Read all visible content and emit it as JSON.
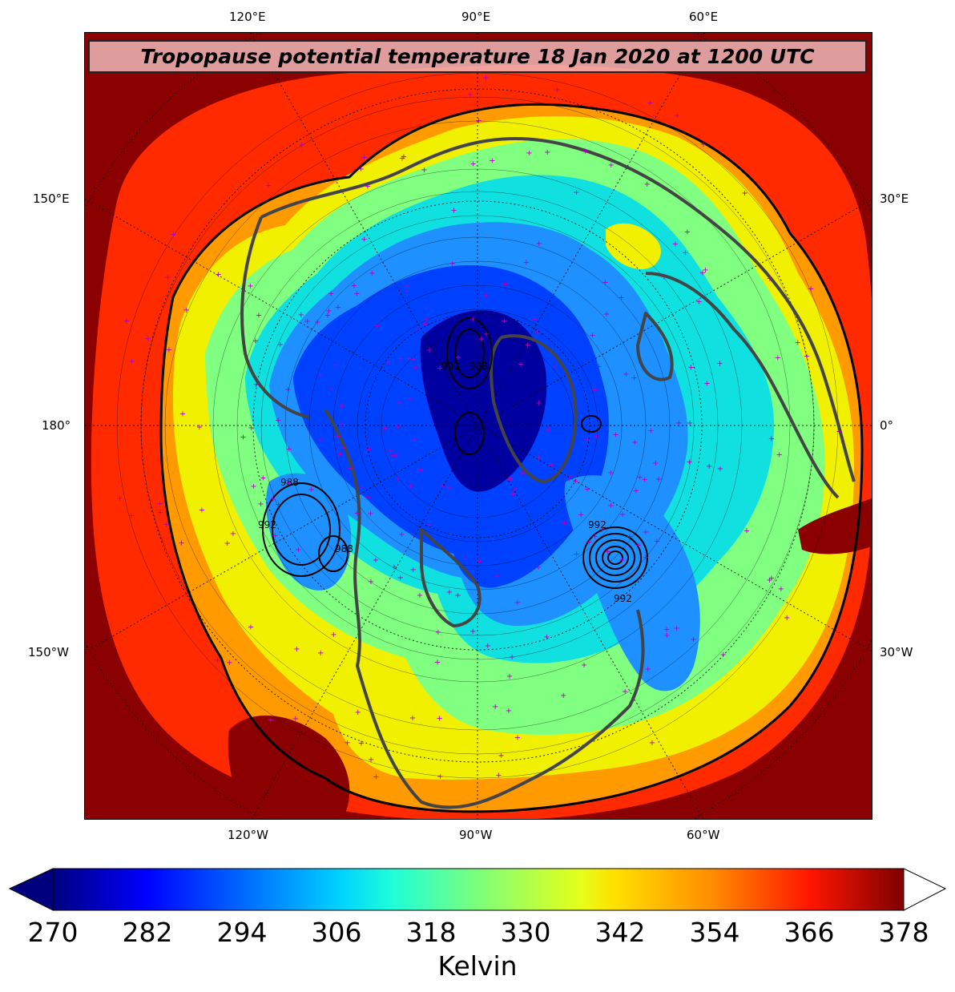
{
  "title": "Tropopause potential temperature 18 Jan 2020 at 1200 UTC",
  "longitude_labels": {
    "top": [
      "120°E",
      "90°E",
      "60°E"
    ],
    "bottom": [
      "120°W",
      "90°W",
      "60°W"
    ],
    "left": [
      "150°E",
      "180°",
      "150°W"
    ],
    "right": [
      "30°E",
      "0°",
      "30°W"
    ]
  },
  "pressure_contour_labels": [
    "992",
    "988",
    "988",
    "992",
    "988",
    "992",
    "992"
  ],
  "colorbar": {
    "ticks": [
      "270",
      "282",
      "294",
      "306",
      "318",
      "330",
      "342",
      "354",
      "366",
      "378"
    ],
    "label": "Kelvin",
    "colormap": "jet",
    "extend_min_color": "#00007f",
    "extend_max_color": "#ffffff"
  },
  "colors": {
    "outer_warm": "#8b0000",
    "warm": "#ff2a00",
    "orange": "#ff9a00",
    "yellow": "#f0f000",
    "green": "#80ff80",
    "cyan": "#10e0e0",
    "light_blue": "#1e90ff",
    "blue": "#0040ff",
    "deep_blue": "#0000a0",
    "coastline": "#444444",
    "station_marker": "#b000c0"
  }
}
